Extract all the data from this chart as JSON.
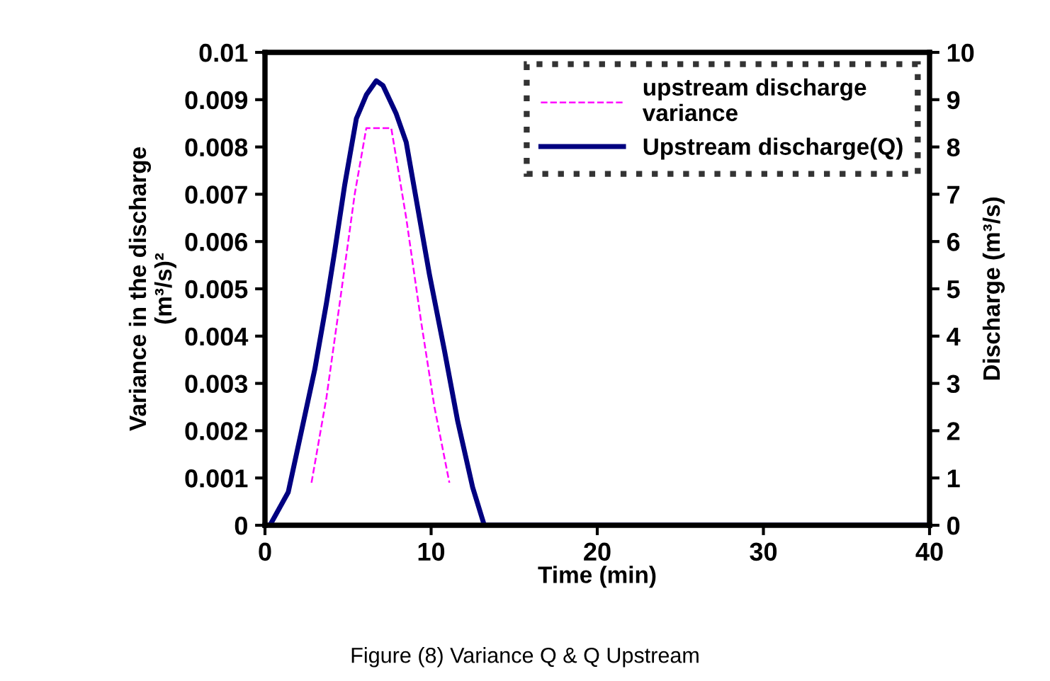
{
  "chart_data": {
    "type": "line",
    "xlabel": "Time (min)",
    "ylabel": "Variance in the discharge\n(m³/s)²",
    "y2label": "Discharge (m³/s)",
    "annotations": [
      "Figure (8) Variance Q & Q Upstream"
    ],
    "series": [
      {
        "name": "upstream discharge\nvariance",
        "color": "#ff00ff",
        "line_style": "dashed",
        "x": [
          2.8,
          3.7,
          4.5,
          5.4,
          6.1,
          7.6,
          8.5,
          9.4,
          10.2,
          11.1
        ],
        "values": [
          0.0009,
          0.0027,
          0.0047,
          0.007,
          0.0084,
          0.0084,
          0.0065,
          0.0043,
          0.0025,
          0.0009
        ]
      },
      {
        "name": "Upstream discharge(Q)",
        "color": "#000080",
        "line_style": "solid",
        "axis": "y2",
        "x": [
          0,
          0.3,
          1.4,
          2.2,
          3,
          3.7,
          4.2,
          4.8,
          5.5,
          6.1,
          6.7,
          7.1,
          7.9,
          8.5,
          9.2,
          9.9,
          10.8,
          11.6,
          12.5,
          13.2,
          40
        ],
        "values": [
          0,
          0,
          0.7,
          2,
          3.3,
          4.7,
          5.8,
          7.2,
          8.6,
          9.1,
          9.4,
          9.3,
          8.7,
          8.1,
          6.7,
          5.3,
          3.7,
          2.2,
          0.8,
          0,
          0
        ]
      }
    ],
    "xlim": [
      0,
      40
    ],
    "xticks": [
      0,
      10,
      20,
      30,
      40
    ],
    "ylim": [
      0,
      0.01
    ],
    "yticks": [
      0,
      0.001,
      0.002,
      0.003,
      0.004,
      0.005,
      0.006,
      0.007,
      0.008,
      0.009,
      0.01
    ],
    "y2lim": [
      0,
      10
    ],
    "y2ticks": [
      0,
      1,
      2,
      3,
      4,
      5,
      6,
      7,
      8,
      9,
      10
    ],
    "grid": false,
    "legend": "top right"
  }
}
